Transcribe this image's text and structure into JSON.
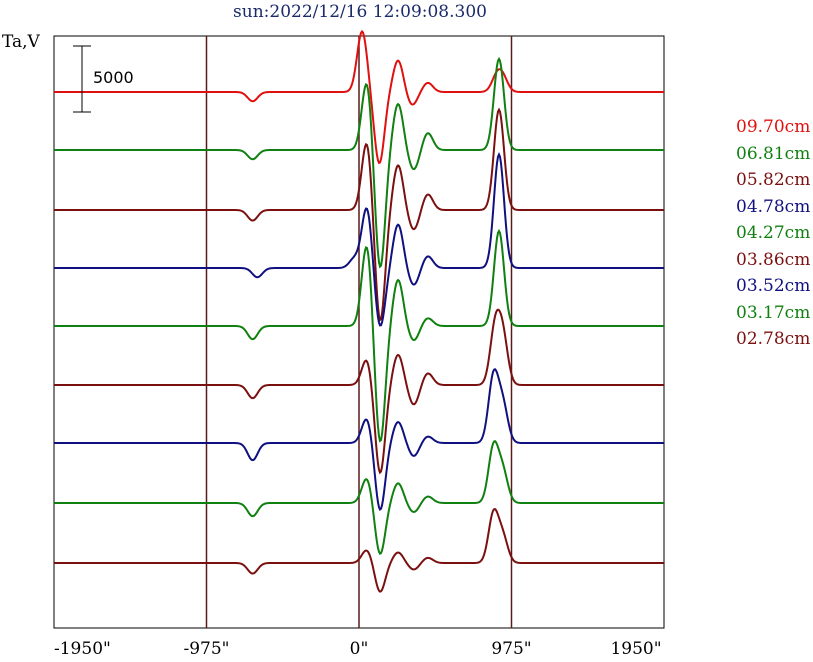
{
  "chart_data": {
    "type": "line",
    "title": "sun:2022/12/16 12:09:08.300",
    "ylabel": "Ta,V",
    "xlabel": "",
    "xlim": [
      -1950,
      1950
    ],
    "x_ticks": [
      "-1950\"",
      "-975\"",
      "0\"",
      "975\"",
      "1950\""
    ],
    "x_tick_values": [
      -1950,
      -975,
      0,
      975,
      1950
    ],
    "vertical_lines": [
      -975,
      0,
      975
    ],
    "scale_bar": {
      "label": "5000",
      "value": 5000
    },
    "grid": false,
    "legend_position": "right",
    "series": [
      {
        "name": "09.70cm",
        "color": "#e01010",
        "peaks": [
          {
            "x": 20,
            "v": 4600
          },
          {
            "x": 130,
            "v": -5400
          },
          {
            "x": 250,
            "v": 2400
          },
          {
            "x": 340,
            "v": -1000
          },
          {
            "x": 440,
            "v": 700
          },
          {
            "x": 880,
            "v": 1100
          },
          {
            "x": 920,
            "v": 1000
          },
          {
            "x": -680,
            "v": -700
          }
        ]
      },
      {
        "name": "06.81cm",
        "color": "#108010",
        "peaks": [
          {
            "x": 50,
            "v": 5200
          },
          {
            "x": 135,
            "v": -9000
          },
          {
            "x": 250,
            "v": 3500
          },
          {
            "x": 350,
            "v": -1500
          },
          {
            "x": 440,
            "v": 1300
          },
          {
            "x": 895,
            "v": 6900
          },
          {
            "x": -680,
            "v": -700
          }
        ]
      },
      {
        "name": "05.82cm",
        "color": "#7a1010",
        "peaks": [
          {
            "x": 50,
            "v": 5200
          },
          {
            "x": 135,
            "v": -8500
          },
          {
            "x": 250,
            "v": 3400
          },
          {
            "x": 350,
            "v": -1500
          },
          {
            "x": 440,
            "v": 1200
          },
          {
            "x": 895,
            "v": 7600
          },
          {
            "x": -680,
            "v": -800
          }
        ]
      },
      {
        "name": "04.78cm",
        "color": "#101080",
        "peaks": [
          {
            "x": -30,
            "v": 700
          },
          {
            "x": 50,
            "v": 4600
          },
          {
            "x": 135,
            "v": -4500
          },
          {
            "x": 250,
            "v": 3300
          },
          {
            "x": 350,
            "v": -1300
          },
          {
            "x": 440,
            "v": 900
          },
          {
            "x": 895,
            "v": 8600
          },
          {
            "x": -650,
            "v": -700
          }
        ]
      },
      {
        "name": "04.27cm",
        "color": "#108010",
        "peaks": [
          {
            "x": 50,
            "v": 6200
          },
          {
            "x": 135,
            "v": -8900
          },
          {
            "x": 250,
            "v": 3500
          },
          {
            "x": 350,
            "v": -1100
          },
          {
            "x": 440,
            "v": 600
          },
          {
            "x": 895,
            "v": 7200
          },
          {
            "x": -680,
            "v": -1000
          }
        ]
      },
      {
        "name": "03.86cm",
        "color": "#7a1010",
        "peaks": [
          {
            "x": 50,
            "v": 2000
          },
          {
            "x": 135,
            "v": -6700
          },
          {
            "x": 250,
            "v": 2300
          },
          {
            "x": 350,
            "v": -1500
          },
          {
            "x": 440,
            "v": 900
          },
          {
            "x": 870,
            "v": 4200
          },
          {
            "x": 920,
            "v": 3500
          },
          {
            "x": -680,
            "v": -1000
          }
        ]
      },
      {
        "name": "03.52cm",
        "color": "#101080",
        "peaks": [
          {
            "x": 50,
            "v": 1900
          },
          {
            "x": 135,
            "v": -5100
          },
          {
            "x": 250,
            "v": 1600
          },
          {
            "x": 350,
            "v": -1000
          },
          {
            "x": 440,
            "v": 500
          },
          {
            "x": 860,
            "v": 5000
          },
          {
            "x": 920,
            "v": 2800
          },
          {
            "x": -680,
            "v": -1300
          }
        ]
      },
      {
        "name": "03.17cm",
        "color": "#108010",
        "peaks": [
          {
            "x": 50,
            "v": 1900
          },
          {
            "x": 135,
            "v": -3900
          },
          {
            "x": 250,
            "v": 1500
          },
          {
            "x": 350,
            "v": -700
          },
          {
            "x": 440,
            "v": 500
          },
          {
            "x": 860,
            "v": 4200
          },
          {
            "x": 920,
            "v": 2300
          },
          {
            "x": -680,
            "v": -1000
          }
        ]
      },
      {
        "name": "02.78cm",
        "color": "#7a1010",
        "peaks": [
          {
            "x": 50,
            "v": 1000
          },
          {
            "x": 135,
            "v": -2200
          },
          {
            "x": 250,
            "v": 800
          },
          {
            "x": 350,
            "v": -500
          },
          {
            "x": 440,
            "v": 400
          },
          {
            "x": 860,
            "v": 3700
          },
          {
            "x": 920,
            "v": 1900
          },
          {
            "x": -680,
            "v": -800
          }
        ]
      }
    ]
  }
}
